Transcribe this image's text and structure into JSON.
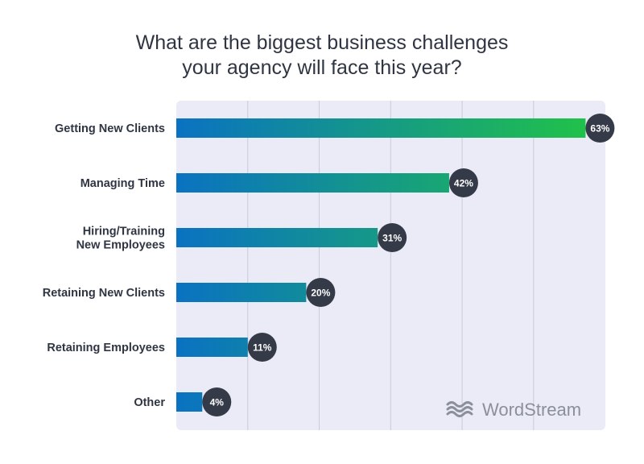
{
  "title": {
    "line1": "What are the biggest business challenges",
    "line2": "your agency will face this year?"
  },
  "brand": {
    "name": "WordStream",
    "logo_icon": "wordstream-waves-icon",
    "color": "#8a8f99"
  },
  "colors": {
    "panel_bg": "#ebebf7",
    "grid": "#c9cad8",
    "bar_start": "#0a72c2",
    "bar_end": "#20c04c",
    "badge": "#343a48",
    "text": "#2f3542"
  },
  "chart_data": {
    "type": "bar",
    "orientation": "horizontal",
    "title": "What are the biggest business challenges your agency will face this year?",
    "categories": [
      [
        "Getting New Clients"
      ],
      [
        "Managing Time"
      ],
      [
        "Hiring/Training",
        "New Employees"
      ],
      [
        "Retaining New Clients"
      ],
      [
        "Retaining Employees"
      ],
      [
        "Other"
      ]
    ],
    "values": [
      63,
      42,
      31,
      20,
      11,
      4
    ],
    "value_labels": [
      "63%",
      "42%",
      "31%",
      "20%",
      "11%",
      "4%"
    ],
    "unit": "%",
    "xlim": [
      0,
      66
    ],
    "grid": true,
    "gridlines_at": [
      11,
      22,
      33,
      44,
      55
    ]
  }
}
